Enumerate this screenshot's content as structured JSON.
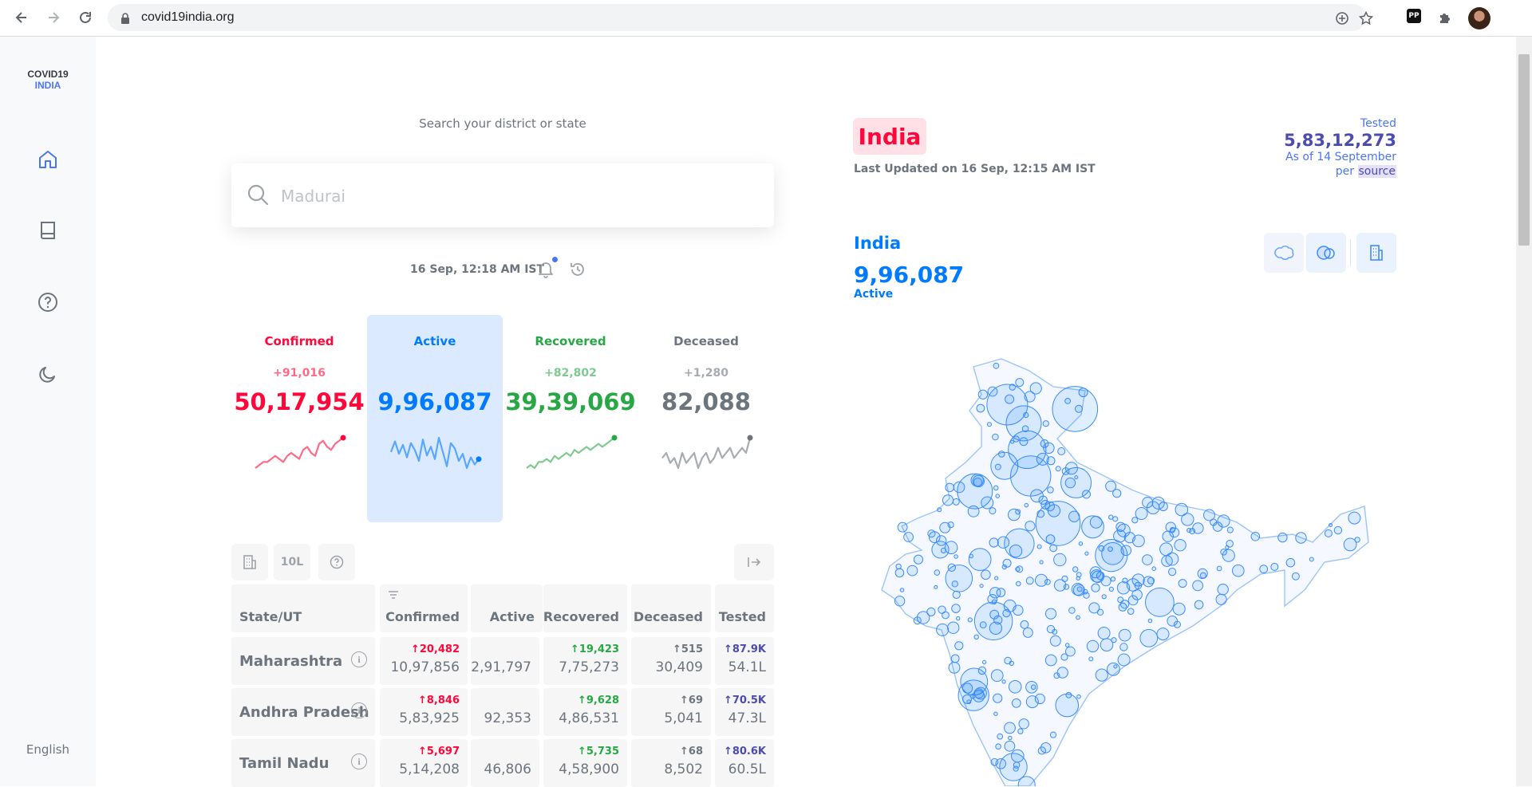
{
  "browser": {
    "url": "covid19india.org"
  },
  "sidebar": {
    "logo_line1": "COVID19",
    "logo_line2": "INDIA",
    "language": "English"
  },
  "search": {
    "label": "Search your district or state",
    "placeholder": "Madurai"
  },
  "header": {
    "timestamp": "16 Sep, 12:18 AM IST"
  },
  "levels": [
    {
      "title": "Confirmed",
      "delta": "+91,016",
      "total": "50,17,954",
      "color": "#ff073a",
      "spark": [
        14,
        13,
        12,
        12,
        11,
        10,
        11,
        12,
        10,
        9,
        10,
        11,
        8,
        7,
        9,
        10,
        6,
        5,
        7,
        8,
        6,
        5,
        4
      ]
    },
    {
      "title": "Active",
      "delta": "",
      "total": "9,96,087",
      "color": "#007bff",
      "spark": [
        20,
        8,
        22,
        12,
        26,
        10,
        18,
        30,
        6,
        24,
        14,
        28,
        4,
        20,
        36,
        10,
        16,
        30,
        22,
        38,
        26,
        34,
        28
      ]
    },
    {
      "title": "Recovered",
      "delta": "+82,802",
      "total": "39,39,069",
      "color": "#28a745",
      "spark": [
        14,
        13,
        14,
        12,
        12,
        11,
        12,
        10,
        11,
        10,
        9,
        10,
        8,
        9,
        8,
        7,
        8,
        7,
        6,
        7,
        6,
        5,
        4
      ]
    },
    {
      "title": "Deceased",
      "delta": "+1,280",
      "total": "82,088",
      "color": "#6c757d",
      "spark": [
        10,
        9,
        11,
        10,
        12,
        9,
        11,
        10,
        9,
        12,
        10,
        9,
        11,
        10,
        8,
        10,
        9,
        8,
        10,
        9,
        8,
        9,
        6
      ]
    }
  ],
  "table": {
    "controls": {
      "scale_label": "10L"
    },
    "headers": [
      "State/UT",
      "Confirmed",
      "Active",
      "Recovered",
      "Deceased",
      "Tested"
    ],
    "rows": [
      {
        "name": "Maharashtra",
        "confirmed_delta": "↑20,482",
        "confirmed": "10,97,856",
        "active": "2,91,797",
        "recovered_delta": "↑19,423",
        "recovered": "7,75,273",
        "deceased_delta": "↑515",
        "deceased": "30,409",
        "tested_delta": "↑87.9K",
        "tested": "54.1L"
      },
      {
        "name": "Andhra Pradesh",
        "confirmed_delta": "↑8,846",
        "confirmed": "5,83,925",
        "active": "92,353",
        "recovered_delta": "↑9,628",
        "recovered": "4,86,531",
        "deceased_delta": "↑69",
        "deceased": "5,041",
        "tested_delta": "↑70.5K",
        "tested": "47.3L"
      },
      {
        "name": "Tamil Nadu",
        "confirmed_delta": "↑5,697",
        "confirmed": "5,14,208",
        "active": "46,806",
        "recovered_delta": "↑5,735",
        "recovered": "4,58,900",
        "deceased_delta": "↑68",
        "deceased": "8,502",
        "tested_delta": "↑80.6K",
        "tested": "60.5L"
      }
    ]
  },
  "map_panel": {
    "region_badge": "India",
    "last_updated": "Last Updated on 16 Sep, 12:15 AM IST",
    "tested_label": "Tested",
    "tested_value": "5,83,12,273",
    "tested_asof": "As of 14 September",
    "tested_per": "per",
    "tested_source": "source",
    "title": "India",
    "count": "9,96,087",
    "statistic": "Active"
  },
  "colors": {
    "confirmed": "#ff073a",
    "active": "#007bff",
    "recovered": "#28a745",
    "deceased": "#6c757d",
    "tested": "#4c4bb0"
  }
}
